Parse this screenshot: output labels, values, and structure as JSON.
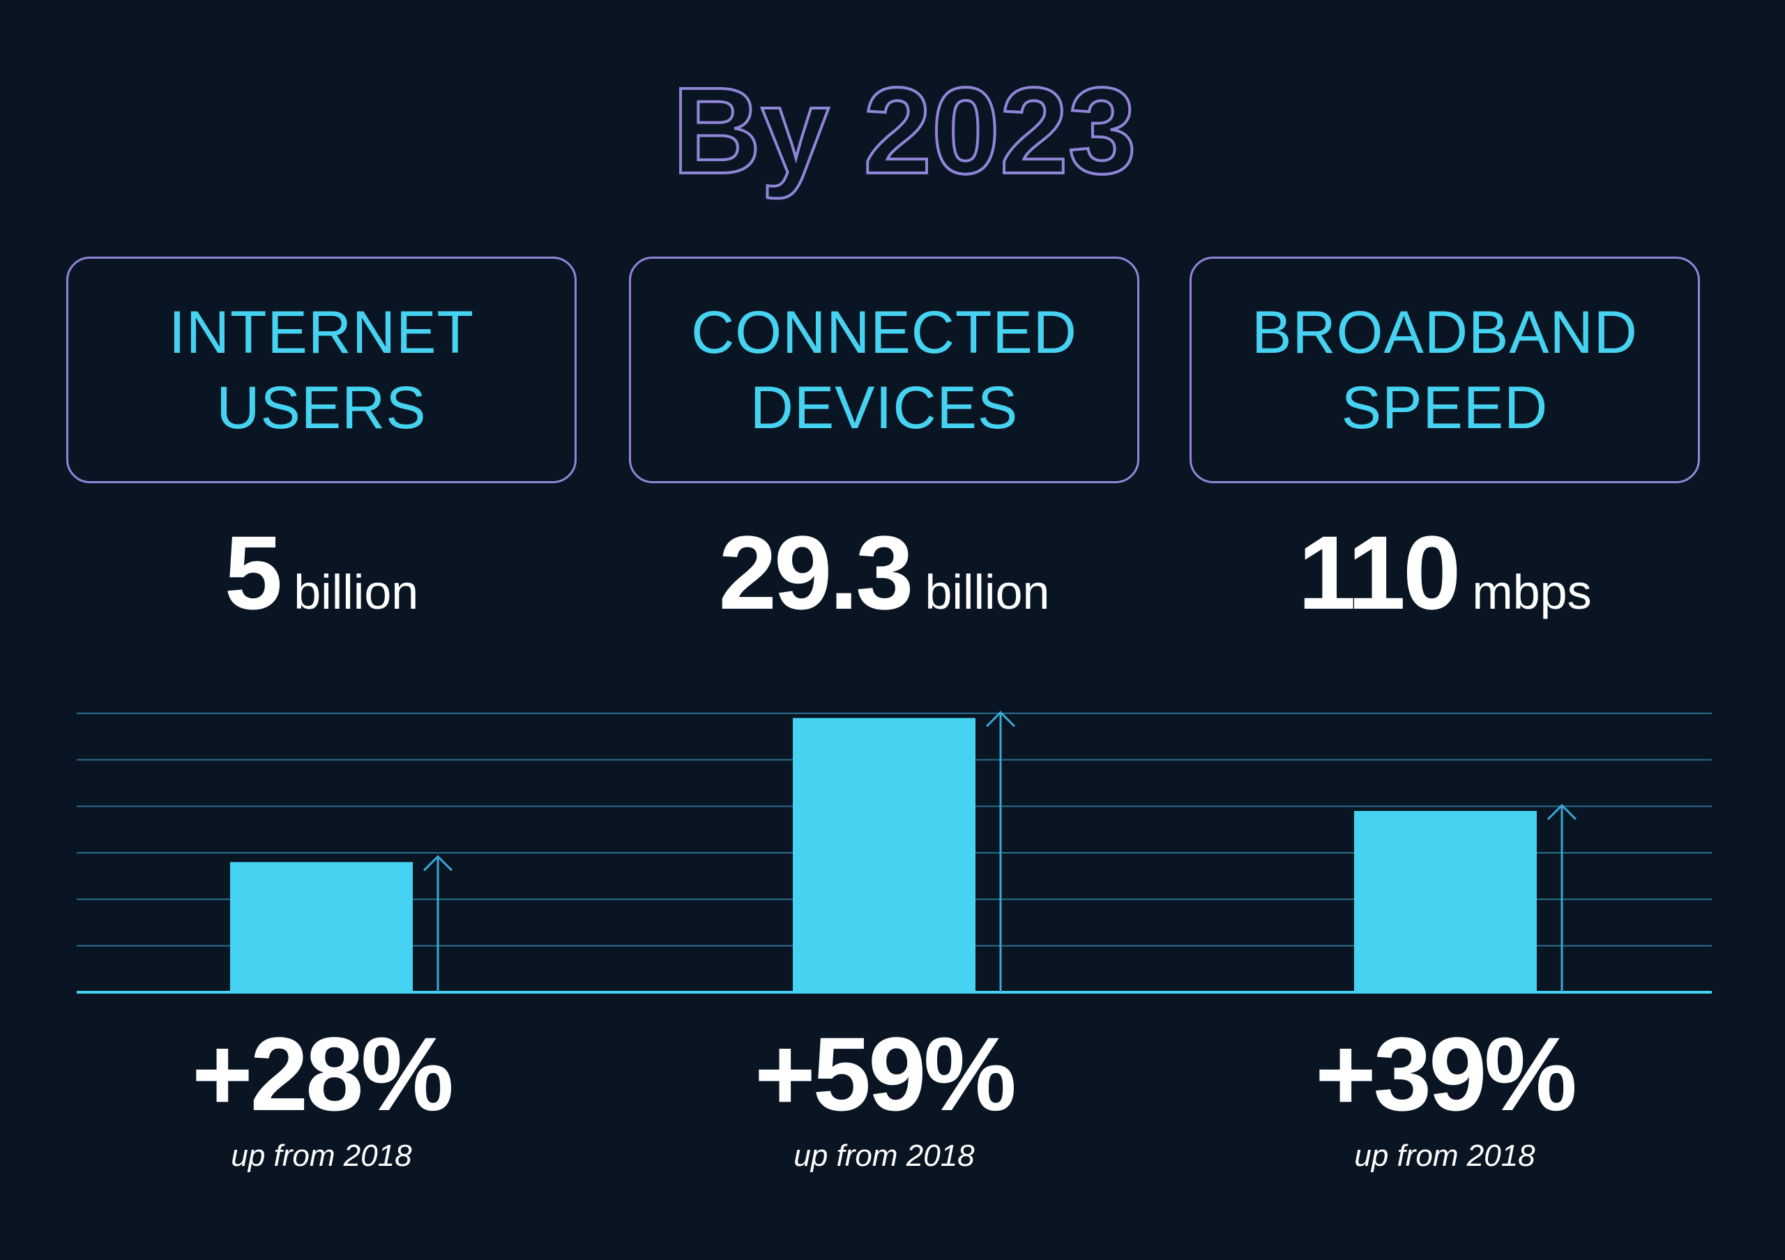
{
  "title": "By 2023",
  "colors": {
    "background": "#0a1523",
    "accent": "#45d3f1",
    "title_outline": "#8f86d8",
    "box_border": "#8f86d8",
    "gridline": "#2b6f8f",
    "arrow": "#3aa7d4"
  },
  "metrics": [
    {
      "label_lines": [
        "INTERNET",
        "USERS"
      ],
      "value": "5",
      "unit": "billion",
      "growth": "+28%",
      "note": "up from 2018"
    },
    {
      "label_lines": [
        "CONNECTED",
        "DEVICES"
      ],
      "value": "29.3",
      "unit": "billion",
      "growth": "+59%",
      "note": "up from 2018"
    },
    {
      "label_lines": [
        "BROADBAND",
        "SPEED"
      ],
      "value": "110",
      "unit": "mbps",
      "growth": "+39%",
      "note": "up from 2018"
    }
  ],
  "chart_data": {
    "type": "bar",
    "title": "By 2023",
    "categories": [
      "INTERNET USERS",
      "CONNECTED DEVICES",
      "BROADBAND SPEED"
    ],
    "values": [
      28,
      59,
      39
    ],
    "ylim": [
      0,
      60
    ],
    "grid": true,
    "legend": "none",
    "annotations": [
      "+28%",
      "+59%",
      "+39%"
    ]
  }
}
